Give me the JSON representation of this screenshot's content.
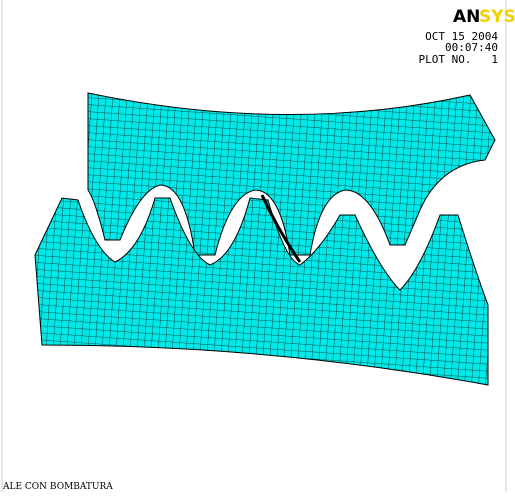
{
  "logo": [
    "AN",
    "SYS"
  ],
  "header": {
    "date": "OCT 15 2004",
    "time": "00:07:40",
    "plot_no": "PLOT NO.   1"
  },
  "caption": "ALE CON BOMBATURA"
}
